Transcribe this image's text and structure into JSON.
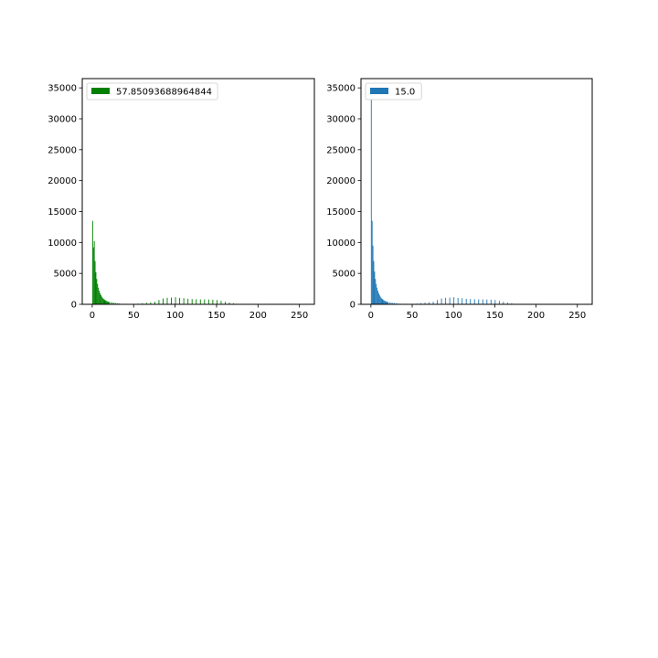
{
  "chart_data": [
    {
      "type": "bar",
      "subtype": "histogram",
      "legend": {
        "label": "57.85093688964844",
        "placement": "upper-left"
      },
      "color": "#008000",
      "xlim": [
        -12,
        268
      ],
      "ylim": [
        0,
        36500
      ],
      "xticks": [
        0,
        50,
        100,
        150,
        200,
        250
      ],
      "yticks": [
        0,
        5000,
        10000,
        15000,
        20000,
        25000,
        30000,
        35000
      ],
      "grid": false,
      "bin_width": 1,
      "bins": [
        [
          0,
          13500
        ],
        [
          1,
          9200
        ],
        [
          2,
          10200
        ],
        [
          3,
          7000
        ],
        [
          4,
          5200
        ],
        [
          5,
          4100
        ],
        [
          6,
          3300
        ],
        [
          7,
          2700
        ],
        [
          8,
          2200
        ],
        [
          9,
          1800
        ],
        [
          10,
          1500
        ],
        [
          11,
          1250
        ],
        [
          12,
          1050
        ],
        [
          13,
          900
        ],
        [
          14,
          780
        ],
        [
          15,
          680
        ],
        [
          16,
          600
        ],
        [
          17,
          530
        ],
        [
          18,
          470
        ],
        [
          19,
          420
        ],
        [
          20,
          380
        ],
        [
          22,
          330
        ],
        [
          24,
          290
        ],
        [
          26,
          250
        ],
        [
          28,
          210
        ],
        [
          30,
          170
        ],
        [
          32,
          130
        ],
        [
          35,
          90
        ],
        [
          40,
          60
        ],
        [
          45,
          40
        ],
        [
          50,
          40
        ],
        [
          55,
          100
        ],
        [
          60,
          180
        ],
        [
          65,
          260
        ],
        [
          70,
          320
        ],
        [
          75,
          420
        ],
        [
          80,
          700
        ],
        [
          85,
          950
        ],
        [
          90,
          1050
        ],
        [
          95,
          1100
        ],
        [
          100,
          1150
        ],
        [
          105,
          1050
        ],
        [
          110,
          1000
        ],
        [
          115,
          900
        ],
        [
          120,
          850
        ],
        [
          125,
          820
        ],
        [
          130,
          800
        ],
        [
          135,
          800
        ],
        [
          140,
          780
        ],
        [
          145,
          760
        ],
        [
          150,
          700
        ],
        [
          155,
          550
        ],
        [
          160,
          400
        ],
        [
          165,
          280
        ],
        [
          170,
          160
        ],
        [
          175,
          80
        ],
        [
          180,
          30
        ],
        [
          185,
          10
        ]
      ]
    },
    {
      "type": "bar",
      "subtype": "histogram",
      "legend": {
        "label": "15.0",
        "placement": "upper-left"
      },
      "color": "#1f77b4",
      "xlim": [
        -12,
        268
      ],
      "ylim": [
        0,
        36500
      ],
      "xticks": [
        0,
        50,
        100,
        150,
        200,
        250
      ],
      "yticks": [
        0,
        5000,
        10000,
        15000,
        20000,
        25000,
        30000,
        35000
      ],
      "grid": false,
      "bin_width": 1,
      "bins": [
        [
          0,
          33500
        ],
        [
          1,
          13500
        ],
        [
          2,
          9500
        ],
        [
          3,
          7000
        ],
        [
          4,
          5300
        ],
        [
          5,
          4100
        ],
        [
          6,
          3300
        ],
        [
          7,
          2700
        ],
        [
          8,
          2200
        ],
        [
          9,
          1800
        ],
        [
          10,
          1500
        ],
        [
          11,
          1250
        ],
        [
          12,
          1050
        ],
        [
          13,
          900
        ],
        [
          14,
          780
        ],
        [
          15,
          680
        ],
        [
          16,
          600
        ],
        [
          17,
          530
        ],
        [
          18,
          470
        ],
        [
          19,
          420
        ],
        [
          20,
          380
        ],
        [
          22,
          330
        ],
        [
          24,
          290
        ],
        [
          26,
          250
        ],
        [
          28,
          210
        ],
        [
          30,
          170
        ],
        [
          32,
          130
        ],
        [
          35,
          90
        ],
        [
          40,
          60
        ],
        [
          45,
          40
        ],
        [
          50,
          40
        ],
        [
          55,
          100
        ],
        [
          60,
          180
        ],
        [
          65,
          260
        ],
        [
          70,
          320
        ],
        [
          75,
          420
        ],
        [
          80,
          700
        ],
        [
          85,
          950
        ],
        [
          90,
          1050
        ],
        [
          95,
          1100
        ],
        [
          100,
          1150
        ],
        [
          105,
          1050
        ],
        [
          110,
          1000
        ],
        [
          115,
          900
        ],
        [
          120,
          850
        ],
        [
          125,
          820
        ],
        [
          130,
          800
        ],
        [
          135,
          800
        ],
        [
          140,
          780
        ],
        [
          145,
          760
        ],
        [
          150,
          700
        ],
        [
          155,
          550
        ],
        [
          160,
          400
        ],
        [
          165,
          280
        ],
        [
          170,
          160
        ],
        [
          175,
          80
        ],
        [
          180,
          30
        ],
        [
          185,
          10
        ]
      ]
    }
  ]
}
